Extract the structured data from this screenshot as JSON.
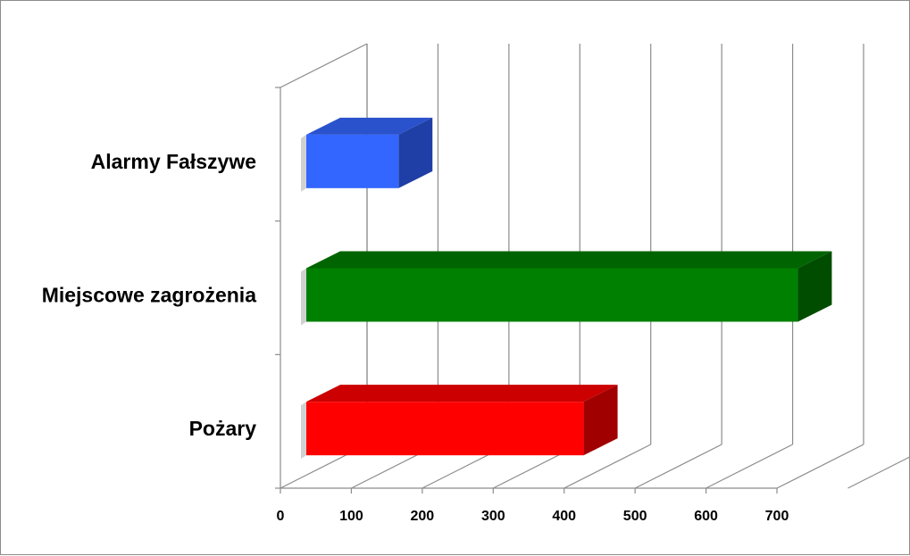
{
  "chart_data": {
    "type": "bar",
    "orientation": "horizontal",
    "style": "3d",
    "categories": [
      "Alarmy Fałszywe",
      "Miejscowe zagrożenia",
      "Pożary"
    ],
    "values": [
      130,
      693,
      391
    ],
    "colors": [
      {
        "front": "#3366ff",
        "top": "#2a52cc",
        "side": "#1f3fa6"
      },
      {
        "front": "#008000",
        "top": "#006400",
        "side": "#004d00"
      },
      {
        "front": "#ff0000",
        "top": "#cc0000",
        "side": "#a00000"
      }
    ],
    "x_ticks": [
      "0",
      "100",
      "200",
      "300",
      "400",
      "500",
      "600",
      "700"
    ],
    "xlim": [
      0,
      800
    ],
    "grid": true,
    "legend": "none",
    "title": "",
    "xlabel": "",
    "ylabel": ""
  }
}
